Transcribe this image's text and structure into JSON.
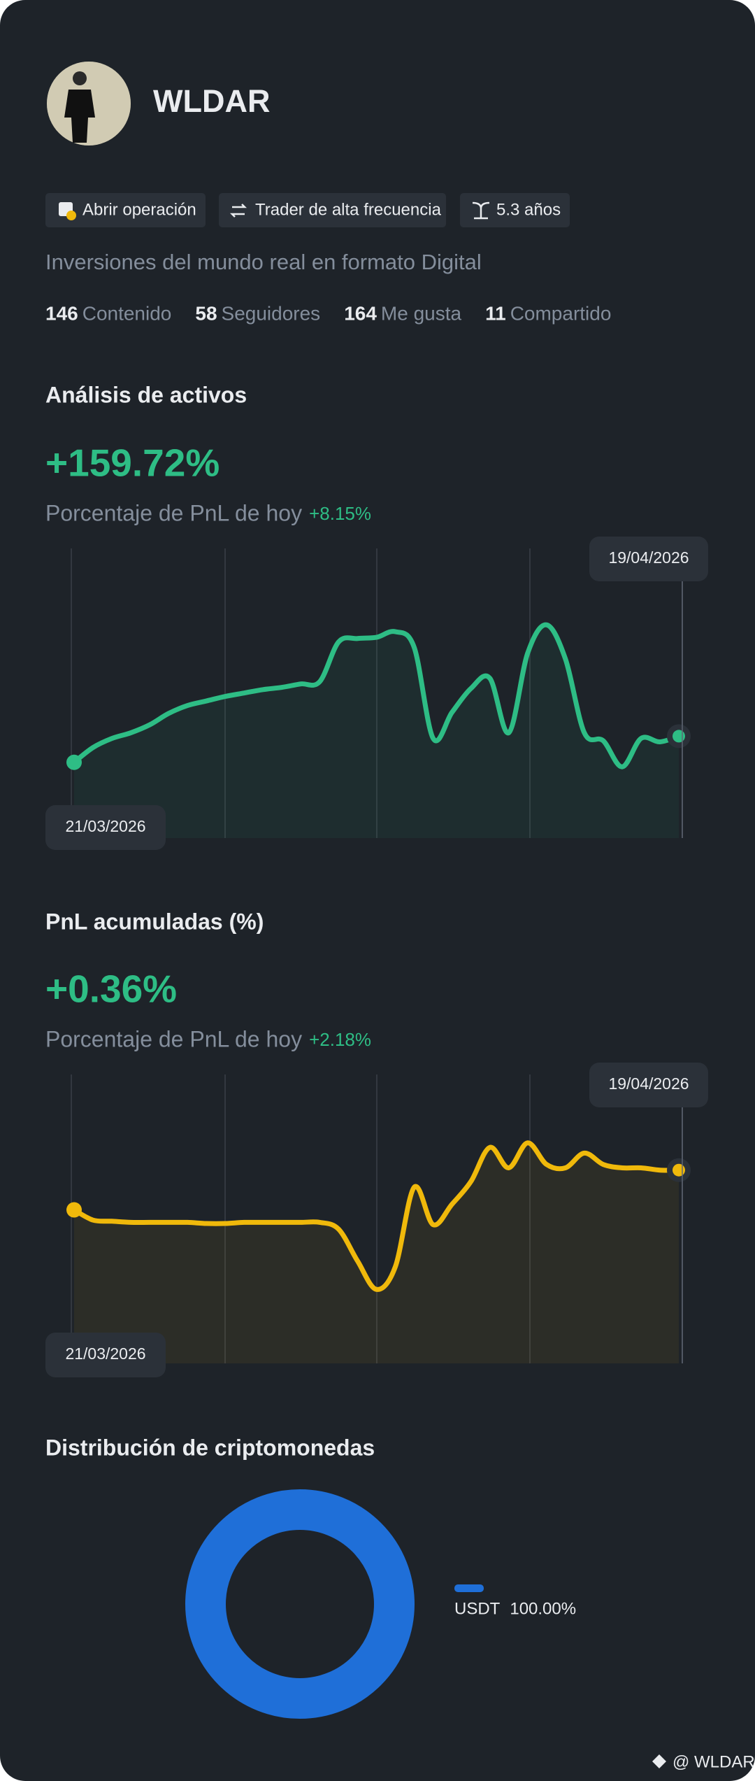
{
  "profile": {
    "name": "WLDAR",
    "tags": [
      "Abrir operación",
      "Trader de alta frecuencia",
      "5.3 años"
    ],
    "bio": "Inversiones del mundo real en formato Digital",
    "stats": [
      {
        "value": 146,
        "label": "Contenido"
      },
      {
        "value": 58,
        "label": "Seguidores"
      },
      {
        "value": 164,
        "label": "Me gusta"
      },
      {
        "value": 11,
        "label": "Compartido"
      }
    ]
  },
  "asset_analysis": {
    "title": "Análisis de activos",
    "value": "+159.72%",
    "subtitle": "Porcentaje de PnL de hoy",
    "today": "+8.15%",
    "start_date": "21/03/2026",
    "end_date": "19/04/2026",
    "chart_data": {
      "type": "line",
      "color": "#2ebd85",
      "values": [
        19,
        32,
        40,
        45,
        52,
        62,
        69,
        73,
        77,
        80,
        83,
        85,
        88,
        90,
        125,
        128,
        129,
        134,
        120,
        40,
        63,
        84,
        93,
        45,
        115,
        140,
        110,
        45,
        38,
        15,
        40,
        37,
        42
      ]
    }
  },
  "pnl_accumulated": {
    "title": "PnL acumuladas (%)",
    "value": "+0.36%",
    "subtitle": "Porcentaje de PnL de hoy",
    "today": "+2.18%",
    "start_date": "21/03/2026",
    "end_date": "19/04/2026",
    "chart_data": {
      "type": "line",
      "color": "#f0b90b",
      "values": [
        85,
        76,
        75,
        74,
        74,
        74,
        74,
        73,
        73,
        74,
        74,
        74,
        74,
        74,
        68,
        40,
        15,
        35,
        105,
        72,
        90,
        110,
        140,
        122,
        144,
        125,
        122,
        135,
        125,
        122,
        122,
        120,
        120
      ]
    }
  },
  "distribution": {
    "title": "Distribución de criptomonedas",
    "chart_data": {
      "type": "pie",
      "categories": [
        "USDT"
      ],
      "values": [
        100
      ],
      "value_labels": [
        "100.00%"
      ],
      "color": "#1f6fd8"
    }
  },
  "watermark": "@ WLDAR"
}
